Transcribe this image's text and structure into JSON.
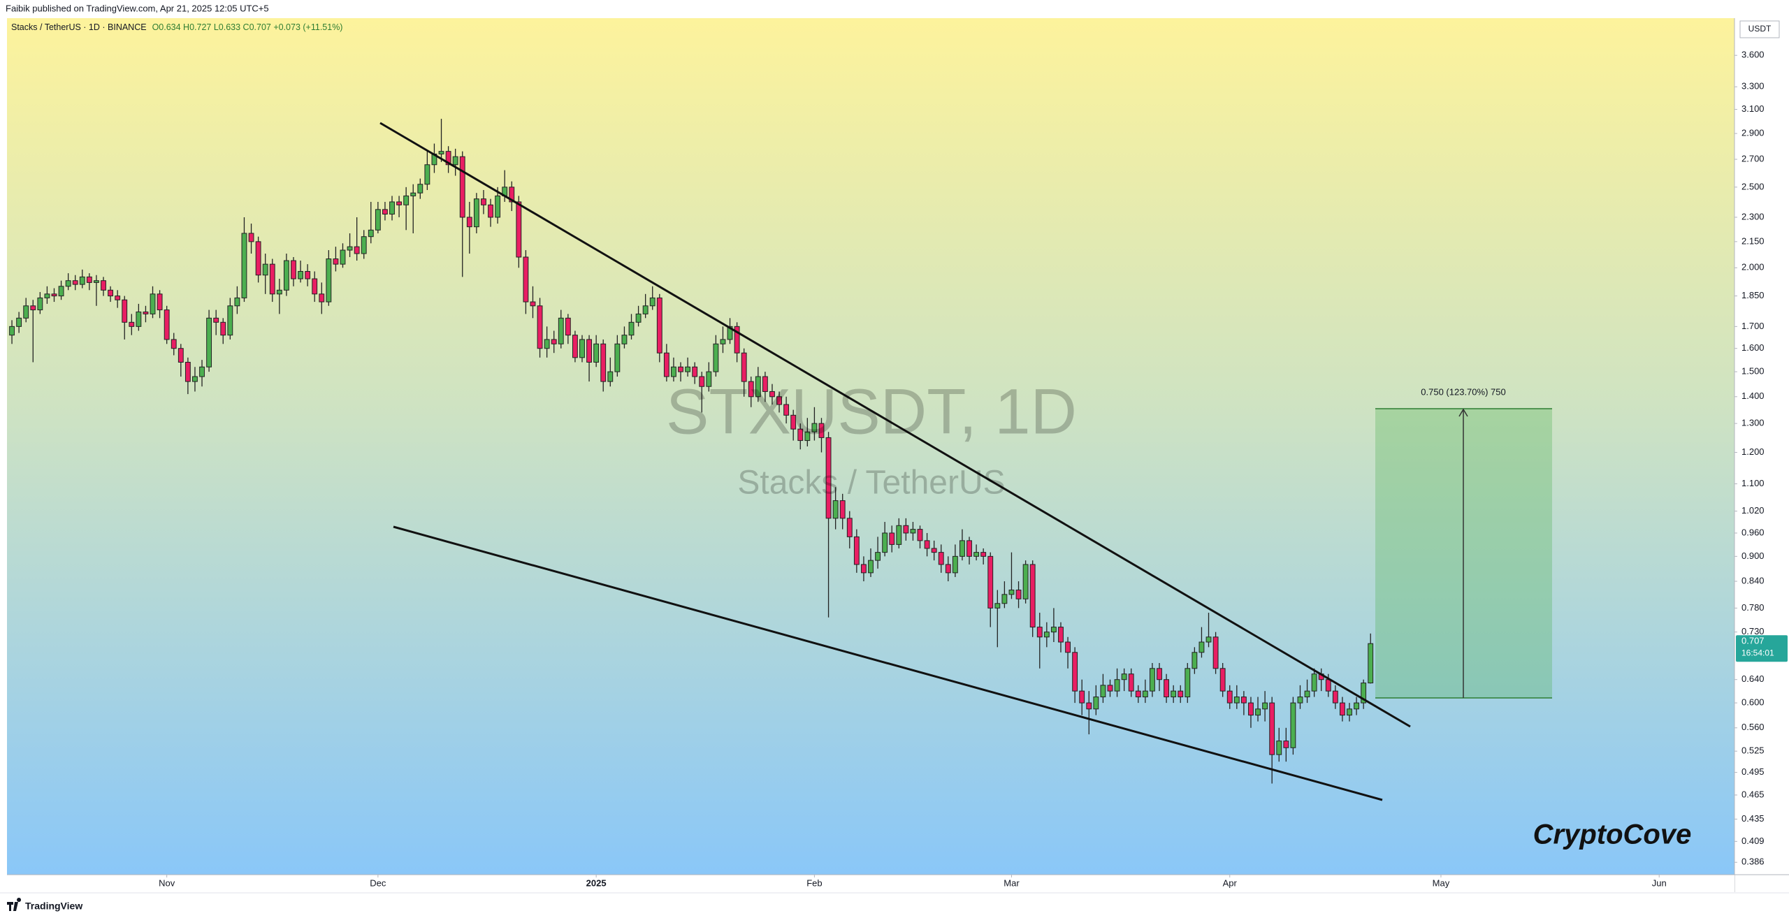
{
  "header": "Faibik published on TradingView.com, Apr 21, 2025 12:05 UTC+5",
  "footer": "TradingView",
  "chart_data": {
    "type": "candlestick",
    "symbol_text": "Stacks / TetherUS · 1D · BINANCE",
    "ohlc_text": "O0.634 H0.727 L0.633 C0.707 +0.073 (+11.51%)",
    "watermark": "STXUSDT, 1D",
    "watermark_subtitle": "Stacks / TetherUS",
    "currency": "USDT",
    "last_price_label": "0.707",
    "countdown": "16:54:01",
    "measure_label": "0.750 (123.70%) 750",
    "signature": "CryptoCove",
    "up_color": "#4caf50",
    "down_color": "#e91e63",
    "log_scale": true,
    "xlim": [
      -0.7,
      244.7
    ],
    "xticks": [
      {
        "value": 22,
        "label": "Nov"
      },
      {
        "value": 52,
        "label": "Dec"
      },
      {
        "value": 83,
        "label": "2025"
      },
      {
        "value": 114,
        "label": "Feb"
      },
      {
        "value": 142,
        "label": "Mar"
      },
      {
        "value": 173,
        "label": "Apr"
      },
      {
        "value": 203,
        "label": "May"
      },
      {
        "value": 234,
        "label": "Jun"
      }
    ],
    "ylim": [
      0.373,
      3.99
    ],
    "yticks": [
      {
        "value": 3.6,
        "label": "3.600"
      },
      {
        "value": 3.3,
        "label": "3.300"
      },
      {
        "value": 3.1,
        "label": "3.100"
      },
      {
        "value": 2.9,
        "label": "2.900"
      },
      {
        "value": 2.7,
        "label": "2.700"
      },
      {
        "value": 2.5,
        "label": "2.500"
      },
      {
        "value": 2.3,
        "label": "2.300"
      },
      {
        "value": 2.15,
        "label": "2.150"
      },
      {
        "value": 2.0,
        "label": "2.000"
      },
      {
        "value": 1.85,
        "label": "1.850"
      },
      {
        "value": 1.7,
        "label": "1.700"
      },
      {
        "value": 1.6,
        "label": "1.600"
      },
      {
        "value": 1.5,
        "label": "1.500"
      },
      {
        "value": 1.4,
        "label": "1.400"
      },
      {
        "value": 1.3,
        "label": "1.300"
      },
      {
        "value": 1.2,
        "label": "1.200"
      },
      {
        "value": 1.1,
        "label": "1.100"
      },
      {
        "value": 1.02,
        "label": "1.020"
      },
      {
        "value": 0.96,
        "label": "0.960"
      },
      {
        "value": 0.9,
        "label": "0.900"
      },
      {
        "value": 0.84,
        "label": "0.840"
      },
      {
        "value": 0.78,
        "label": "0.780"
      },
      {
        "value": 0.73,
        "label": "0.730"
      },
      {
        "value": 0.64,
        "label": "0.640"
      },
      {
        "value": 0.6,
        "label": "0.600"
      },
      {
        "value": 0.56,
        "label": "0.560"
      },
      {
        "value": 0.525,
        "label": "0.525"
      },
      {
        "value": 0.495,
        "label": "0.495"
      },
      {
        "value": 0.465,
        "label": "0.465"
      },
      {
        "value": 0.435,
        "label": "0.435"
      },
      {
        "value": 0.409,
        "label": "0.409"
      },
      {
        "value": 0.386,
        "label": "0.386"
      }
    ],
    "open": [
      1.66,
      1.7,
      1.74,
      1.8,
      1.78,
      1.84,
      1.86,
      1.85,
      1.9,
      1.93,
      1.91,
      1.95,
      1.92,
      1.93,
      1.88,
      1.85,
      1.83,
      1.72,
      1.7,
      1.77,
      1.76,
      1.86,
      1.78,
      1.64,
      1.6,
      1.54,
      1.46,
      1.48,
      1.52,
      1.74,
      1.72,
      1.66,
      1.8,
      1.84,
      2.2,
      2.15,
      1.96,
      2.02,
      1.86,
      1.88,
      2.04,
      1.94,
      1.98,
      1.94,
      1.86,
      1.82,
      2.05,
      2.02,
      2.1,
      2.12,
      2.08,
      2.18,
      2.22,
      2.35,
      2.32,
      2.4,
      2.38,
      2.44,
      2.46,
      2.52,
      2.66,
      2.74,
      2.76,
      2.66,
      2.72,
      2.3,
      2.24,
      2.42,
      2.38,
      2.3,
      2.44,
      2.5,
      2.4,
      2.06,
      1.82,
      1.8,
      1.6,
      1.64,
      1.62,
      1.74,
      1.66,
      1.56,
      1.64,
      1.54,
      1.62,
      1.46,
      1.5,
      1.62,
      1.66,
      1.72,
      1.76,
      1.8,
      1.84,
      1.58,
      1.48,
      1.52,
      1.5,
      1.52,
      1.48,
      1.44,
      1.5,
      1.62,
      1.64,
      1.7,
      1.58,
      1.46,
      1.4,
      1.48,
      1.42,
      1.4,
      1.37,
      1.33,
      1.28,
      1.24,
      1.27,
      1.3,
      1.25,
      1.0,
      1.05,
      1.0,
      0.95,
      0.88,
      0.86,
      0.89,
      0.91,
      0.96,
      0.93,
      0.98,
      0.96,
      0.97,
      0.94,
      0.92,
      0.91,
      0.88,
      0.86,
      0.9,
      0.94,
      0.9,
      0.91,
      0.9,
      0.78,
      0.79,
      0.81,
      0.82,
      0.8,
      0.88,
      0.74,
      0.72,
      0.73,
      0.74,
      0.71,
      0.69,
      0.62,
      0.6,
      0.59,
      0.61,
      0.63,
      0.62,
      0.64,
      0.65,
      0.62,
      0.61,
      0.62,
      0.66,
      0.64,
      0.61,
      0.62,
      0.61,
      0.66,
      0.69,
      0.71,
      0.72,
      0.66,
      0.62,
      0.6,
      0.61,
      0.6,
      0.58,
      0.59,
      0.6,
      0.52,
      0.54,
      0.53,
      0.6,
      0.61,
      0.62,
      0.65,
      0.64,
      0.62,
      0.6,
      0.58,
      0.59,
      0.6,
      0.634
    ],
    "high": [
      1.73,
      1.77,
      1.84,
      1.83,
      1.87,
      1.9,
      1.89,
      1.93,
      1.97,
      1.96,
      1.99,
      1.97,
      1.96,
      1.95,
      1.9,
      1.88,
      1.85,
      1.76,
      1.81,
      1.8,
      1.9,
      1.88,
      1.8,
      1.67,
      1.62,
      1.56,
      1.52,
      1.55,
      1.78,
      1.78,
      1.74,
      1.84,
      1.9,
      2.3,
      2.26,
      2.18,
      2.08,
      2.05,
      1.94,
      2.08,
      2.06,
      2.04,
      2.02,
      1.98,
      1.92,
      2.1,
      2.12,
      2.14,
      2.2,
      2.3,
      2.22,
      2.4,
      2.4,
      2.4,
      2.44,
      2.44,
      2.5,
      2.52,
      2.56,
      2.76,
      2.82,
      3.02,
      2.8,
      2.78,
      2.76,
      2.4,
      2.46,
      2.48,
      2.42,
      2.5,
      2.62,
      2.54,
      2.44,
      2.1,
      1.9,
      1.84,
      1.7,
      1.68,
      1.78,
      1.76,
      1.68,
      1.66,
      1.66,
      1.66,
      1.64,
      1.56,
      1.66,
      1.7,
      1.76,
      1.8,
      1.86,
      1.9,
      1.86,
      1.62,
      1.56,
      1.54,
      1.56,
      1.54,
      1.5,
      1.54,
      1.66,
      1.7,
      1.74,
      1.72,
      1.6,
      1.48,
      1.52,
      1.5,
      1.45,
      1.42,
      1.4,
      1.35,
      1.3,
      1.32,
      1.36,
      1.32,
      1.27,
      1.09,
      1.07,
      1.02,
      0.97,
      0.9,
      0.92,
      0.95,
      0.99,
      0.98,
      1.0,
      1.0,
      0.99,
      0.98,
      0.96,
      0.94,
      0.93,
      0.9,
      0.93,
      0.97,
      0.95,
      0.93,
      0.92,
      0.91,
      0.82,
      0.84,
      0.91,
      0.84,
      0.89,
      0.89,
      0.77,
      0.75,
      0.78,
      0.75,
      0.72,
      0.7,
      0.64,
      0.62,
      0.63,
      0.65,
      0.64,
      0.66,
      0.66,
      0.66,
      0.63,
      0.64,
      0.67,
      0.67,
      0.65,
      0.63,
      0.63,
      0.67,
      0.7,
      0.74,
      0.77,
      0.73,
      0.67,
      0.63,
      0.63,
      0.62,
      0.61,
      0.61,
      0.62,
      0.61,
      0.56,
      0.56,
      0.61,
      0.63,
      0.64,
      0.66,
      0.66,
      0.65,
      0.63,
      0.61,
      0.6,
      0.61,
      0.64,
      0.727
    ],
    "low": [
      1.62,
      1.67,
      1.72,
      1.54,
      1.76,
      1.81,
      1.82,
      1.83,
      1.88,
      1.88,
      1.89,
      1.88,
      1.8,
      1.85,
      1.82,
      1.79,
      1.64,
      1.66,
      1.68,
      1.72,
      1.74,
      1.74,
      1.62,
      1.57,
      1.48,
      1.41,
      1.42,
      1.44,
      1.5,
      1.66,
      1.62,
      1.64,
      1.76,
      1.82,
      2.08,
      1.92,
      1.86,
      1.82,
      1.76,
      1.85,
      1.9,
      1.92,
      1.9,
      1.82,
      1.76,
      1.8,
      1.98,
      2.0,
      2.06,
      2.04,
      2.05,
      2.14,
      2.2,
      2.28,
      2.28,
      2.3,
      2.22,
      2.2,
      2.42,
      2.48,
      2.6,
      2.68,
      2.6,
      2.58,
      1.95,
      2.08,
      2.2,
      2.32,
      2.24,
      2.26,
      2.4,
      2.34,
      2.0,
      1.76,
      1.74,
      1.56,
      1.56,
      1.58,
      1.6,
      1.62,
      1.54,
      1.54,
      1.46,
      1.52,
      1.42,
      1.44,
      1.48,
      1.6,
      1.64,
      1.7,
      1.74,
      1.78,
      1.54,
      1.46,
      1.46,
      1.46,
      1.48,
      1.45,
      1.34,
      1.42,
      1.48,
      1.58,
      1.62,
      1.54,
      1.4,
      1.36,
      1.38,
      1.38,
      1.37,
      1.34,
      1.3,
      1.24,
      1.21,
      1.22,
      1.24,
      1.2,
      0.76,
      0.97,
      0.97,
      0.92,
      0.86,
      0.84,
      0.85,
      0.87,
      0.9,
      0.91,
      0.92,
      0.94,
      0.94,
      0.92,
      0.9,
      0.89,
      0.86,
      0.84,
      0.85,
      0.89,
      0.88,
      0.89,
      0.88,
      0.74,
      0.7,
      0.78,
      0.8,
      0.78,
      0.79,
      0.72,
      0.66,
      0.7,
      0.71,
      0.69,
      0.66,
      0.6,
      0.58,
      0.55,
      0.58,
      0.6,
      0.61,
      0.61,
      0.62,
      0.61,
      0.6,
      0.6,
      0.61,
      0.62,
      0.6,
      0.6,
      0.6,
      0.6,
      0.65,
      0.68,
      0.7,
      0.65,
      0.61,
      0.59,
      0.59,
      0.58,
      0.56,
      0.57,
      0.57,
      0.48,
      0.51,
      0.51,
      0.52,
      0.59,
      0.6,
      0.61,
      0.62,
      0.61,
      0.59,
      0.57,
      0.57,
      0.58,
      0.59,
      0.633
    ],
    "close": [
      1.7,
      1.74,
      1.8,
      1.78,
      1.84,
      1.86,
      1.85,
      1.9,
      1.93,
      1.91,
      1.95,
      1.92,
      1.93,
      1.88,
      1.85,
      1.83,
      1.72,
      1.7,
      1.77,
      1.76,
      1.86,
      1.78,
      1.64,
      1.6,
      1.54,
      1.46,
      1.48,
      1.52,
      1.74,
      1.72,
      1.66,
      1.8,
      1.84,
      2.2,
      2.15,
      1.96,
      2.02,
      1.86,
      1.88,
      2.04,
      1.94,
      1.98,
      1.94,
      1.86,
      1.82,
      2.05,
      2.02,
      2.1,
      2.12,
      2.08,
      2.18,
      2.22,
      2.35,
      2.32,
      2.4,
      2.38,
      2.44,
      2.46,
      2.52,
      2.66,
      2.74,
      2.76,
      2.66,
      2.72,
      2.3,
      2.24,
      2.42,
      2.38,
      2.3,
      2.44,
      2.5,
      2.4,
      2.06,
      1.82,
      1.8,
      1.6,
      1.64,
      1.62,
      1.74,
      1.66,
      1.56,
      1.64,
      1.54,
      1.62,
      1.46,
      1.5,
      1.62,
      1.66,
      1.72,
      1.76,
      1.8,
      1.84,
      1.58,
      1.48,
      1.52,
      1.5,
      1.52,
      1.48,
      1.44,
      1.5,
      1.62,
      1.64,
      1.7,
      1.58,
      1.46,
      1.4,
      1.48,
      1.42,
      1.4,
      1.37,
      1.33,
      1.28,
      1.24,
      1.27,
      1.3,
      1.25,
      1.0,
      1.05,
      1.0,
      0.95,
      0.88,
      0.86,
      0.89,
      0.91,
      0.96,
      0.93,
      0.98,
      0.96,
      0.97,
      0.94,
      0.92,
      0.91,
      0.88,
      0.86,
      0.9,
      0.94,
      0.9,
      0.91,
      0.9,
      0.78,
      0.79,
      0.81,
      0.82,
      0.8,
      0.88,
      0.74,
      0.72,
      0.73,
      0.74,
      0.71,
      0.69,
      0.62,
      0.6,
      0.59,
      0.61,
      0.63,
      0.62,
      0.64,
      0.65,
      0.62,
      0.61,
      0.62,
      0.66,
      0.64,
      0.61,
      0.62,
      0.61,
      0.66,
      0.69,
      0.71,
      0.72,
      0.66,
      0.62,
      0.6,
      0.61,
      0.6,
      0.58,
      0.59,
      0.6,
      0.52,
      0.54,
      0.53,
      0.6,
      0.61,
      0.62,
      0.65,
      0.64,
      0.62,
      0.6,
      0.58,
      0.59,
      0.6,
      0.634,
      0.707
    ]
  }
}
